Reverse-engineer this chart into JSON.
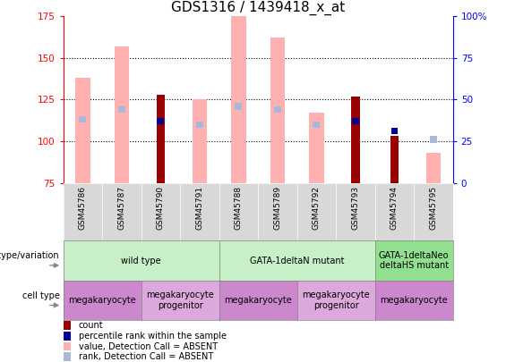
{
  "title": "GDS1316 / 1439418_x_at",
  "samples": [
    "GSM45786",
    "GSM45787",
    "GSM45790",
    "GSM45791",
    "GSM45788",
    "GSM45789",
    "GSM45792",
    "GSM45793",
    "GSM45794",
    "GSM45795"
  ],
  "ylim": [
    75,
    175
  ],
  "yticks": [
    75,
    100,
    125,
    150,
    175
  ],
  "y2lim": [
    0,
    100
  ],
  "y2ticks": [
    0,
    25,
    50,
    75,
    100
  ],
  "pink_bar_values": [
    138,
    157,
    null,
    125,
    175,
    162,
    117,
    null,
    null,
    93
  ],
  "dark_red_bar_values": [
    null,
    null,
    128,
    null,
    null,
    null,
    null,
    127,
    103,
    null
  ],
  "blue_marker_values": [
    113,
    119,
    112,
    110,
    121,
    119,
    110,
    112,
    106,
    null
  ],
  "light_blue_marker_values": [
    null,
    null,
    null,
    null,
    null,
    null,
    null,
    null,
    null,
    101
  ],
  "blue_is_dark": [
    false,
    false,
    true,
    false,
    false,
    false,
    false,
    true,
    true,
    false
  ],
  "genotype_groups": [
    {
      "label": "wild type",
      "start": 0,
      "end": 3,
      "color": "#c8f0c8"
    },
    {
      "label": "GATA-1deltaN mutant",
      "start": 4,
      "end": 7,
      "color": "#c8f0c8"
    },
    {
      "label": "GATA-1deltaNeo\ndeltaHS mutant",
      "start": 8,
      "end": 9,
      "color": "#90e090"
    }
  ],
  "celltype_groups": [
    {
      "label": "megakaryocyte",
      "start": 0,
      "end": 1,
      "color": "#cc88cc"
    },
    {
      "label": "megakaryocyte\nprogenitor",
      "start": 2,
      "end": 3,
      "color": "#dda8dd"
    },
    {
      "label": "megakaryocyte",
      "start": 4,
      "end": 5,
      "color": "#cc88cc"
    },
    {
      "label": "megakaryocyte\nprogenitor",
      "start": 6,
      "end": 7,
      "color": "#dda8dd"
    },
    {
      "label": "megakaryocyte",
      "start": 8,
      "end": 9,
      "color": "#cc88cc"
    }
  ],
  "dark_red_color": "#990000",
  "pink_color": "#ffb0b0",
  "dark_blue_color": "#000099",
  "light_blue_color": "#a8b8d8",
  "grid_color": "#000000",
  "title_fontsize": 11,
  "tick_fontsize": 7.5,
  "label_fontsize": 8
}
